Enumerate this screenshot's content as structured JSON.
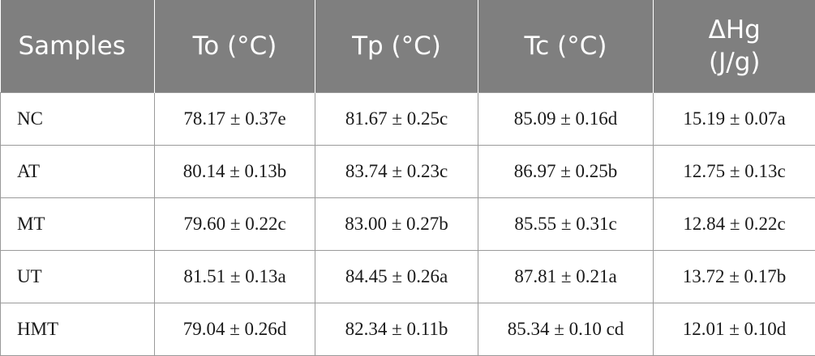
{
  "table": {
    "headers": [
      {
        "line1": "Samples",
        "line2": ""
      },
      {
        "line1": "To (°C)",
        "line2": ""
      },
      {
        "line1": "Tp (°C)",
        "line2": ""
      },
      {
        "line1": "Tc (°C)",
        "line2": ""
      },
      {
        "line1": "ΔHg",
        "line2": "(J/g)"
      }
    ],
    "rows": [
      [
        "NC",
        "78.17 ± 0.37e",
        "81.67 ± 0.25c",
        "85.09 ± 0.16d",
        "15.19 ± 0.07a"
      ],
      [
        "AT",
        "80.14 ± 0.13b",
        "83.74 ± 0.23c",
        "86.97 ± 0.25b",
        "12.75 ± 0.13c"
      ],
      [
        "MT",
        "79.60 ± 0.22c",
        "83.00 ± 0.27b",
        "85.55 ± 0.31c",
        "12.84 ± 0.22c"
      ],
      [
        "UT",
        "81.51 ± 0.13a",
        "84.45 ± 0.26a",
        "87.81 ± 0.21a",
        "13.72 ± 0.17b"
      ],
      [
        "HMT",
        "79.04 ± 0.26d",
        "82.34 ± 0.11b",
        "85.34 ± 0.10 cd",
        "12.01 ± 0.10d"
      ]
    ]
  },
  "colors": {
    "header_bg": "#7f7f7f",
    "header_text": "#ffffff",
    "border": "#9a9a9a",
    "body_text": "#1a1a1a"
  }
}
